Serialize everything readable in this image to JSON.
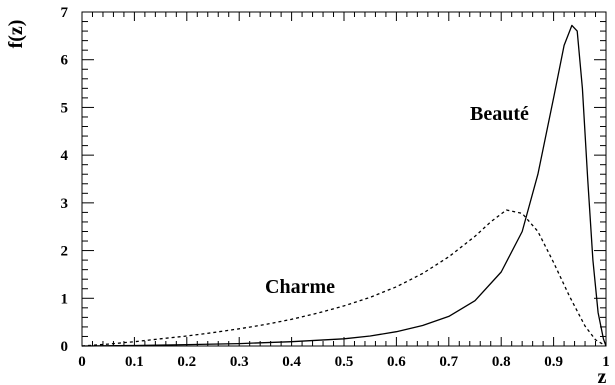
{
  "chart_data": {
    "type": "line",
    "title": "",
    "xlabel": "z",
    "ylabel": "f(z)",
    "xlim": [
      0,
      1
    ],
    "ylim": [
      0,
      7
    ],
    "grid": false,
    "x_ticks": [
      "0",
      "0.1",
      "0.2",
      "0.3",
      "0.4",
      "0.5",
      "0.6",
      "0.7",
      "0.8",
      "0.9",
      "1"
    ],
    "y_ticks": [
      "0",
      "1",
      "2",
      "3",
      "4",
      "5",
      "6",
      "7"
    ],
    "series": [
      {
        "name": "Charme",
        "style": "dashed",
        "x": [
          0.0,
          0.05,
          0.1,
          0.15,
          0.2,
          0.25,
          0.3,
          0.35,
          0.4,
          0.45,
          0.5,
          0.55,
          0.6,
          0.65,
          0.7,
          0.75,
          0.78,
          0.81,
          0.84,
          0.87,
          0.9,
          0.93,
          0.96,
          0.98,
          1.0
        ],
        "y": [
          0.0,
          0.04,
          0.09,
          0.15,
          0.21,
          0.28,
          0.36,
          0.45,
          0.56,
          0.69,
          0.84,
          1.02,
          1.24,
          1.52,
          1.87,
          2.3,
          2.6,
          2.85,
          2.78,
          2.4,
          1.75,
          1.05,
          0.42,
          0.13,
          0.0
        ]
      },
      {
        "name": "Beauté",
        "style": "solid",
        "x": [
          0.0,
          0.1,
          0.2,
          0.3,
          0.4,
          0.5,
          0.55,
          0.6,
          0.65,
          0.7,
          0.75,
          0.8,
          0.84,
          0.87,
          0.9,
          0.92,
          0.935,
          0.945,
          0.955,
          0.965,
          0.975,
          0.985,
          0.995,
          1.0
        ],
        "y": [
          0.0,
          0.01,
          0.03,
          0.05,
          0.09,
          0.15,
          0.21,
          0.3,
          0.43,
          0.62,
          0.95,
          1.55,
          2.4,
          3.6,
          5.2,
          6.3,
          6.72,
          6.6,
          5.4,
          3.5,
          1.8,
          0.7,
          0.15,
          0.0
        ]
      }
    ],
    "annotations": [
      "Charme",
      "Beauté"
    ]
  }
}
